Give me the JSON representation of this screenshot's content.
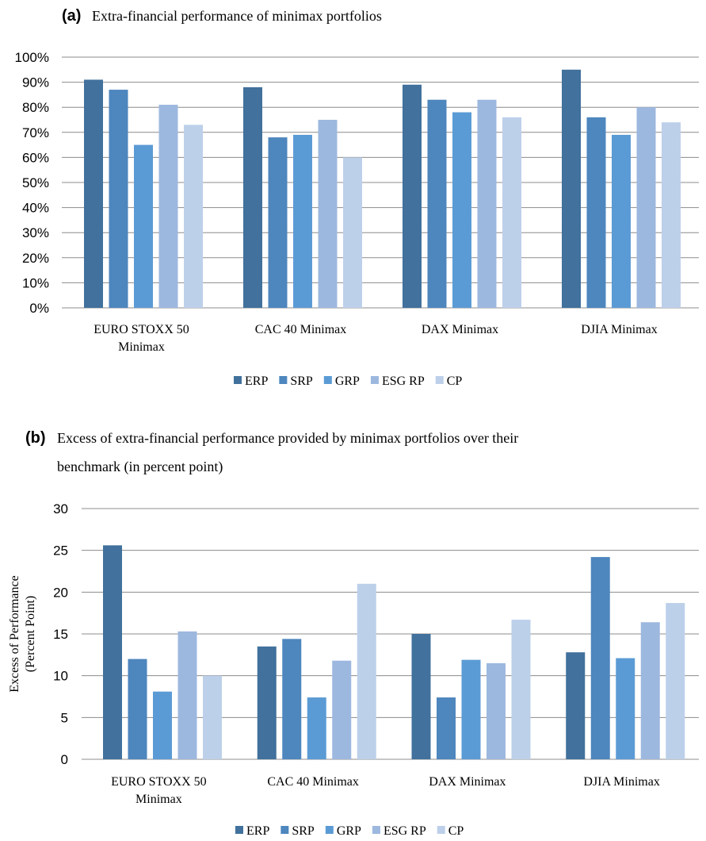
{
  "chart_data": [
    {
      "type": "bar",
      "panel_label": "(a)",
      "title": "Extra-financial performance of minimax portfolios",
      "title_line2": "",
      "xlabel": "",
      "ylabel": "",
      "ylim": [
        0,
        100
      ],
      "y_ticks": [
        "0%",
        "10%",
        "20%",
        "30%",
        "40%",
        "50%",
        "60%",
        "70%",
        "80%",
        "90%",
        "100%"
      ],
      "y_tick_values": [
        0,
        10,
        20,
        30,
        40,
        50,
        60,
        70,
        80,
        90,
        100
      ],
      "grid": true,
      "legend_position": "bottom",
      "categories": [
        [
          "EURO STOXX 50",
          "Minimax"
        ],
        [
          "CAC 40 Minimax"
        ],
        [
          "DAX Minimax"
        ],
        [
          "DJIA Minimax"
        ]
      ],
      "series": [
        {
          "name": "ERP",
          "color": "#41719C",
          "values": [
            91,
            88,
            89,
            95
          ]
        },
        {
          "name": "SRP",
          "color": "#4E86BE",
          "values": [
            87,
            68,
            83,
            76
          ]
        },
        {
          "name": "GRP",
          "color": "#5B9BD5",
          "values": [
            65,
            69,
            78,
            69
          ]
        },
        {
          "name": "ESG RP",
          "color": "#9DB8DF",
          "values": [
            81,
            75,
            83,
            80
          ]
        },
        {
          "name": "CP",
          "color": "#BDD0EA",
          "values": [
            73,
            60,
            76,
            74
          ]
        }
      ]
    },
    {
      "type": "bar",
      "panel_label": "(b)",
      "title": "Excess of extra-financial performance provided by minimax portfolios over their",
      "title_line2": "benchmark (in percent point)",
      "xlabel": "",
      "ylabel": [
        "Excess of Performance",
        "(Percent Point)"
      ],
      "ylim": [
        0,
        30
      ],
      "y_ticks": [
        "0",
        "5",
        "10",
        "15",
        "20",
        "25",
        "30"
      ],
      "y_tick_values": [
        0,
        5,
        10,
        15,
        20,
        25,
        30
      ],
      "grid": true,
      "legend_position": "bottom",
      "categories": [
        [
          "EURO STOXX 50",
          "Minimax"
        ],
        [
          "CAC 40 Minimax"
        ],
        [
          "DAX Minimax"
        ],
        [
          "DJIA Minimax"
        ]
      ],
      "series": [
        {
          "name": "ERP",
          "color": "#41719C",
          "values": [
            25.6,
            13.5,
            15.0,
            12.8
          ]
        },
        {
          "name": "SRP",
          "color": "#4E86BE",
          "values": [
            12.0,
            14.4,
            7.4,
            24.2
          ]
        },
        {
          "name": "GRP",
          "color": "#5B9BD5",
          "values": [
            8.1,
            7.4,
            11.9,
            12.1
          ]
        },
        {
          "name": "ESG RP",
          "color": "#9DB8DF",
          "values": [
            15.3,
            11.8,
            11.5,
            16.4
          ]
        },
        {
          "name": "CP",
          "color": "#BDD0EA",
          "values": [
            10.0,
            21.0,
            16.7,
            18.7
          ]
        }
      ]
    }
  ]
}
